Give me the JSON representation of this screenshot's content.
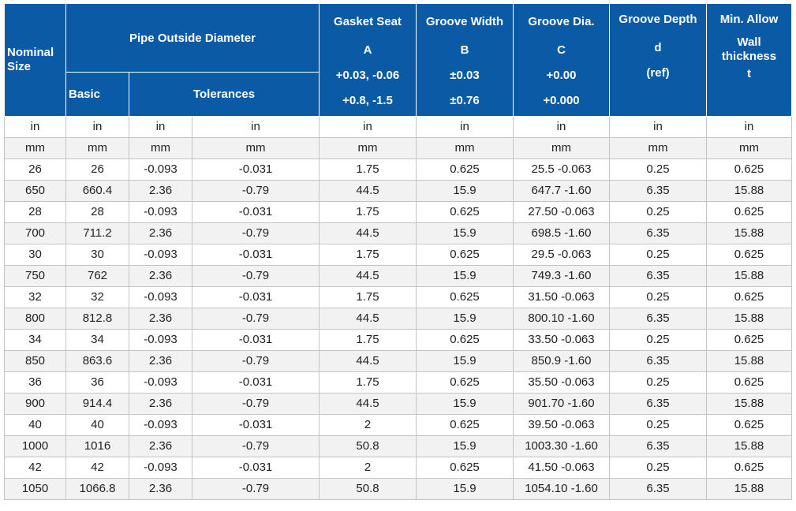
{
  "header": {
    "nominal_size": "Nominal Size",
    "pipe_od": "Pipe Outside Diameter",
    "basic": "Basic",
    "tolerances": "Tolerances",
    "gasket_seat": [
      "Gasket Seat",
      "A",
      "+0.03, -0.06",
      "+0.8, -1.5"
    ],
    "groove_width": [
      "Groove Width",
      "B",
      "±0.03",
      "±0.76"
    ],
    "groove_dia": [
      "Groove Dia.",
      "C",
      "+0.00",
      "+0.000"
    ],
    "groove_depth": [
      "Groove Depth",
      "d",
      "(ref)"
    ],
    "min_allow": [
      "Min. Allow",
      "Wall thickness",
      "t"
    ]
  },
  "unit_rows": [
    [
      "in",
      "in",
      "in",
      "in",
      "in",
      "in",
      "in",
      "in",
      "in"
    ],
    [
      "mm",
      "mm",
      "mm",
      "mm",
      "mm",
      "mm",
      "mm",
      "mm",
      "mm"
    ]
  ],
  "rows": [
    [
      "26",
      "26",
      "-0.093",
      "-0.031",
      "1.75",
      "0.625",
      "25.5 -0.063",
      "0.25",
      "0.625"
    ],
    [
      "650",
      "660.4",
      "2.36",
      "-0.79",
      "44.5",
      "15.9",
      "647.7 -1.60",
      "6.35",
      "15.88"
    ],
    [
      "28",
      "28",
      "-0.093",
      "-0.031",
      "1.75",
      "0.625",
      "27.50 -0.063",
      "0.25",
      "0.625"
    ],
    [
      "700",
      "711.2",
      "2.36",
      "-0.79",
      "44.5",
      "15.9",
      "698.5 -1.60",
      "6.35",
      "15.88"
    ],
    [
      "30",
      "30",
      "-0.093",
      "-0.031",
      "1.75",
      "0.625",
      "29.5 -0.063",
      "0.25",
      "0.625"
    ],
    [
      "750",
      "762",
      "2.36",
      "-0.79",
      "44.5",
      "15.9",
      "749.3 -1.60",
      "6.35",
      "15.88"
    ],
    [
      "32",
      "32",
      "-0.093",
      "-0.031",
      "1.75",
      "0.625",
      "31.50 -0.063",
      "0.25",
      "0.625"
    ],
    [
      "800",
      "812.8",
      "2.36",
      "-0.79",
      "44.5",
      "15.9",
      "800.10 -1.60",
      "6.35",
      "15.88"
    ],
    [
      "34",
      "34",
      "-0.093",
      "-0.031",
      "1.75",
      "0.625",
      "33.50 -0.063",
      "0.25",
      "0.625"
    ],
    [
      "850",
      "863.6",
      "2.36",
      "-0.79",
      "44.5",
      "15.9",
      "850.9 -1.60",
      "6.35",
      "15.88"
    ],
    [
      "36",
      "36",
      "-0.093",
      "-0.031",
      "1.75",
      "0.625",
      "35.50 -0.063",
      "0.25",
      "0.625"
    ],
    [
      "900",
      "914.4",
      "2.36",
      "-0.79",
      "44.5",
      "15.9",
      "901.70 -1.60",
      "6.35",
      "15.88"
    ],
    [
      "40",
      "40",
      "-0.093",
      "-0.031",
      "2",
      "0.625",
      "39.50 -0.063",
      "0.25",
      "0.625"
    ],
    [
      "1000",
      "1016",
      "2.36",
      "-0.79",
      "50.8",
      "15.9",
      "1003.30 -1.60",
      "6.35",
      "15.88"
    ],
    [
      "42",
      "42",
      "-0.093",
      "-0.031",
      "2",
      "0.625",
      "41.50 -0.063",
      "0.25",
      "0.625"
    ],
    [
      "1050",
      "1066.8",
      "2.36",
      "-0.79",
      "50.8",
      "15.9",
      "1054.10 -1.60",
      "6.35",
      "15.88"
    ]
  ],
  "colors": {
    "header_bg": "#0b5aa6",
    "header_text": "#ffffff",
    "row_alt_bg": "#f2f2f2",
    "border": "#c4c4c4"
  }
}
